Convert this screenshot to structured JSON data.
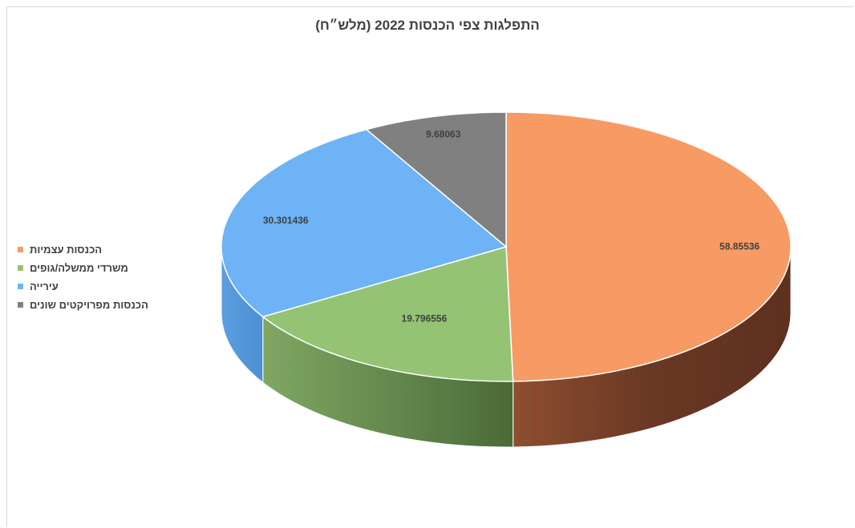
{
  "chart_data": {
    "type": "pie",
    "title": "התפלגות צפי הכנסות 2022 (מלש״ח)",
    "legend_position": "left",
    "categories": [
      "הכנסות עצמיות",
      "משרדי ממשלה/גופים",
      "עירייה",
      "הכנסות מפרויקטים שונים"
    ],
    "values": [
      58.85536,
      19.796556,
      30.301436,
      9.68063
    ],
    "data_labels": [
      "58.85536",
      "19.796556",
      "30.301436",
      "9.68063"
    ],
    "colors": [
      "#F79A63",
      "#94C374",
      "#6DB3F5",
      "#808080"
    ],
    "side_colors": [
      "#7A3E22",
      "#4E7A3A",
      "#4A8CD0",
      "#555555"
    ]
  }
}
